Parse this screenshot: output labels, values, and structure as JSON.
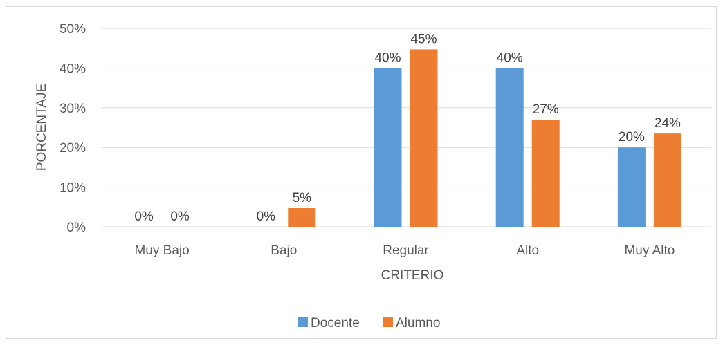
{
  "chart_data": {
    "type": "bar",
    "title": "",
    "xlabel": "CRITERIO",
    "ylabel": "PORCENTAJE",
    "categories": [
      "Muy Bajo",
      "Bajo",
      "Regular",
      "Alto",
      "Muy Alto"
    ],
    "series": [
      {
        "name": "Docente",
        "color": "#5b9bd5",
        "values": [
          0,
          0,
          40,
          40,
          20
        ],
        "labels": [
          "0%",
          "0%",
          "40%",
          "40%",
          "20%"
        ]
      },
      {
        "name": "Alumno",
        "color": "#ed7d31",
        "values": [
          0,
          4.7,
          44.7,
          27.0,
          23.5
        ],
        "labels": [
          "0%",
          "5%",
          "45%",
          "27%",
          "24%"
        ]
      }
    ],
    "ylim": [
      0,
      50
    ],
    "yticks": [
      "0%",
      "10%",
      "20%",
      "30%",
      "40%",
      "50%"
    ],
    "ytick_values": [
      0,
      10,
      20,
      30,
      40,
      50
    ],
    "grid": true,
    "gridline_color": "#d9d9d9",
    "legend_position": "bottom"
  }
}
